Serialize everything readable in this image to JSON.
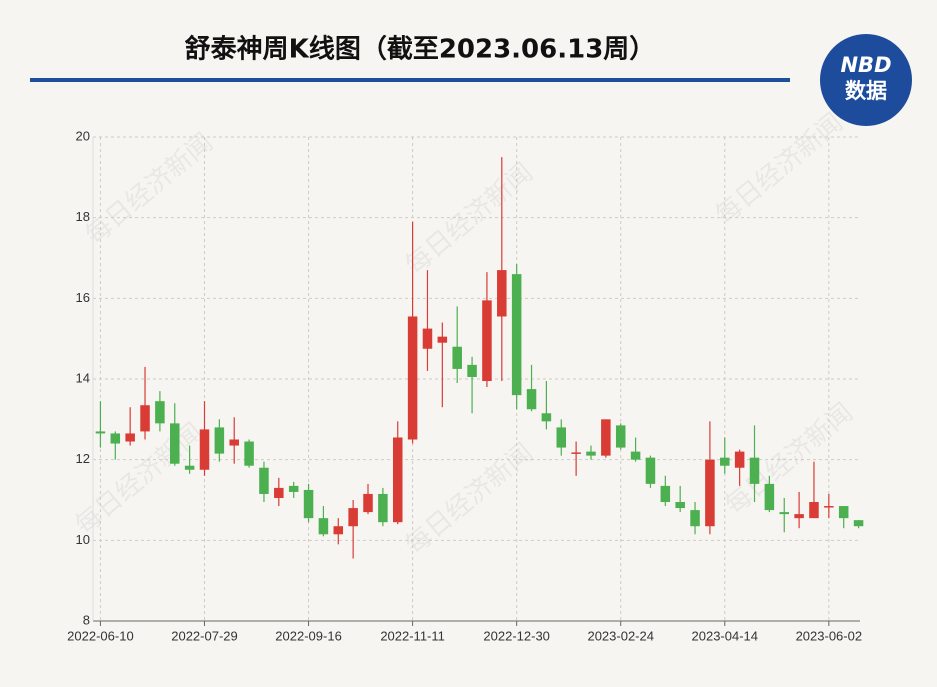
{
  "chart_data": {
    "type": "candlestick",
    "title": "舒泰神周K线图（截至2023.06.13周）",
    "logo": {
      "top": "NBD",
      "bottom": "数据"
    },
    "watermark": "每日经济新闻",
    "categories": [
      "2022-06-10",
      null,
      null,
      null,
      null,
      null,
      null,
      "2022-07-29",
      null,
      null,
      null,
      null,
      null,
      null,
      "2022-09-16",
      null,
      null,
      null,
      null,
      null,
      null,
      "2022-11-11",
      null,
      null,
      null,
      null,
      null,
      null,
      "2022-12-30",
      null,
      null,
      null,
      null,
      null,
      null,
      "2023-02-24",
      null,
      null,
      null,
      null,
      null,
      null,
      "2023-04-14",
      null,
      null,
      null,
      null,
      null,
      null,
      "2023-06-02",
      null,
      null
    ],
    "open": [
      12.7,
      12.65,
      12.45,
      12.7,
      13.45,
      12.9,
      11.85,
      11.75,
      12.8,
      12.35,
      12.45,
      11.8,
      11.05,
      11.35,
      11.25,
      10.55,
      10.15,
      10.35,
      10.7,
      11.15,
      10.45,
      12.5,
      14.75,
      14.9,
      14.8,
      14.35,
      13.95,
      15.55,
      16.6,
      13.75,
      13.15,
      12.8,
      12.15,
      12.2,
      12.1,
      12.85,
      12.2,
      12.05,
      11.35,
      10.95,
      10.75,
      10.35,
      12.05,
      11.8,
      12.05,
      11.4,
      10.7,
      10.55,
      10.55,
      10.85,
      10.85,
      10.5
    ],
    "high": [
      13.45,
      12.7,
      13.3,
      14.3,
      13.7,
      13.4,
      12.35,
      13.45,
      13.0,
      13.05,
      12.5,
      11.95,
      11.55,
      11.45,
      11.4,
      10.85,
      10.55,
      11.0,
      11.4,
      11.3,
      12.95,
      17.9,
      16.7,
      15.4,
      15.8,
      14.55,
      16.65,
      19.5,
      16.85,
      14.35,
      13.95,
      13.0,
      12.45,
      12.35,
      13.0,
      12.9,
      12.55,
      12.1,
      11.6,
      11.35,
      10.95,
      12.95,
      12.55,
      12.25,
      12.85,
      11.6,
      11.05,
      11.2,
      11.95,
      11.15,
      10.85,
      10.5
    ],
    "low": [
      12.3,
      12.0,
      12.35,
      12.5,
      12.7,
      11.85,
      11.65,
      11.6,
      11.95,
      11.9,
      11.8,
      10.95,
      10.85,
      11.05,
      10.45,
      10.1,
      9.9,
      9.55,
      10.65,
      10.35,
      10.4,
      12.4,
      14.2,
      13.3,
      13.9,
      13.15,
      13.8,
      13.95,
      13.25,
      13.2,
      12.75,
      12.1,
      11.6,
      12.0,
      12.05,
      12.25,
      11.95,
      11.3,
      10.85,
      10.7,
      10.15,
      10.15,
      11.65,
      11.35,
      10.95,
      10.7,
      10.2,
      10.3,
      10.55,
      10.55,
      10.3,
      10.3
    ],
    "close": [
      12.65,
      12.4,
      12.65,
      13.35,
      12.9,
      11.9,
      11.75,
      12.75,
      12.15,
      12.5,
      11.85,
      11.15,
      11.3,
      11.2,
      10.55,
      10.15,
      10.35,
      10.8,
      11.15,
      10.45,
      12.55,
      15.55,
      15.25,
      15.05,
      14.25,
      14.05,
      15.95,
      16.7,
      13.6,
      13.25,
      12.95,
      12.3,
      12.18,
      12.1,
      13.0,
      12.3,
      12.0,
      11.4,
      10.95,
      10.8,
      10.35,
      12.0,
      11.85,
      12.2,
      11.4,
      10.75,
      10.65,
      10.65,
      10.95,
      10.85,
      10.55,
      10.35
    ],
    "up_color": "#d93b35",
    "down_color": "#4caf50",
    "ylim": [
      8,
      20
    ],
    "yticks": [
      8,
      10,
      12,
      14,
      16,
      18,
      20
    ],
    "grid": true
  }
}
